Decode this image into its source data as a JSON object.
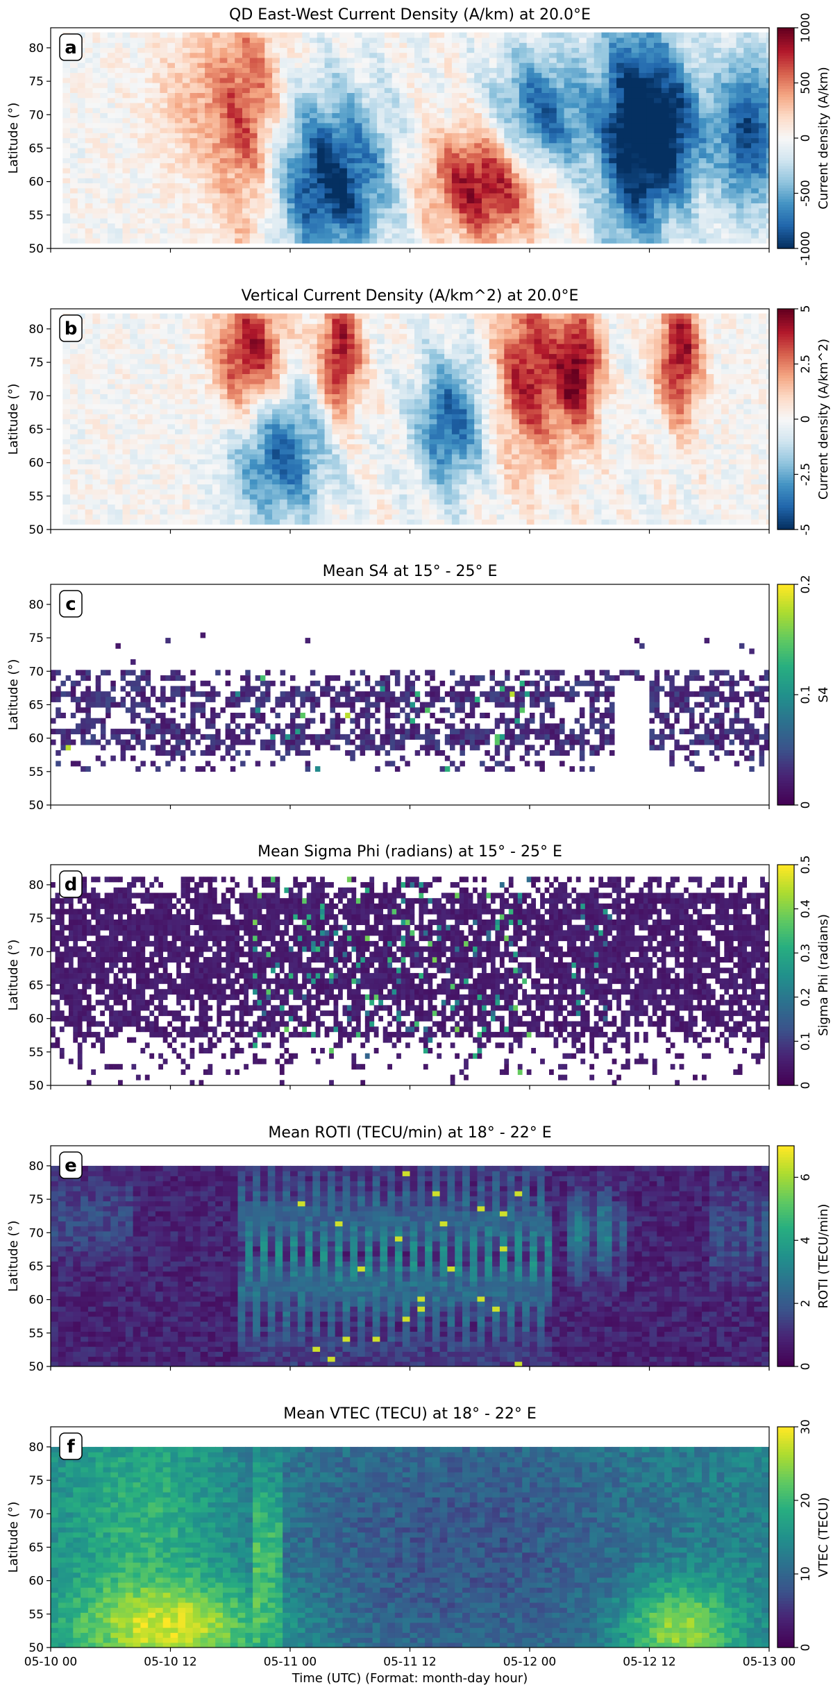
{
  "figure": {
    "xlabel": "Time (UTC) (Format: month-day hour)",
    "xticks": [
      "05-10 00",
      "05-10 12",
      "05-11 00",
      "05-11 12",
      "05-12 00",
      "05-12 12",
      "05-13 00"
    ],
    "colors": {
      "rdbu_neg": "#053061",
      "rdbu_mid": "#f7f7f7",
      "rdbu_pos": "#67001f",
      "viridis_low": "#440154",
      "viridis_high": "#fde725"
    }
  },
  "chart_data": [
    {
      "type": "heatmap",
      "label": "a",
      "title": "QD East-West Current Density (A/km) at 20.0°E",
      "ylabel": "Latitude (°)",
      "ylim": [
        50,
        83
      ],
      "yticks": [
        50,
        55,
        60,
        65,
        70,
        75,
        80
      ],
      "x_range": [
        "05-10 00",
        "05-13 00"
      ],
      "colormap": "RdBu_r",
      "colorbar_label": "Current density (A/km)",
      "clim": [
        -1000,
        1000
      ],
      "colorbar_ticks": [
        "-1000",
        "-500",
        "0",
        "500",
        "1000"
      ],
      "features": [
        {
          "t_hours": [
            40,
            48
          ],
          "lat": [
            55,
            65
          ],
          "value": 1000
        },
        {
          "t_hours": [
            24,
            32
          ],
          "lat": [
            52,
            68
          ],
          "value": -1000
        },
        {
          "t_hours": [
            46,
            52
          ],
          "lat": [
            62,
            75
          ],
          "value": -900
        },
        {
          "t_hours": [
            56,
            60
          ],
          "lat": [
            55,
            80
          ],
          "value": -900
        },
        {
          "t_hours": [
            60,
            64
          ],
          "lat": [
            60,
            75
          ],
          "value": -900
        },
        {
          "t_hours": [
            68,
            72
          ],
          "lat": [
            60,
            75
          ],
          "value": -900
        },
        {
          "t_hours": [
            12,
            18
          ],
          "lat": [
            65,
            80
          ],
          "value": 300
        },
        {
          "t_hours": [
            18,
            22
          ],
          "lat": [
            55,
            80
          ],
          "value": 600
        }
      ]
    },
    {
      "type": "heatmap",
      "label": "b",
      "title": "Vertical Current Density (A/km^2) at 20.0°E",
      "ylabel": "Latitude (°)",
      "ylim": [
        50,
        83
      ],
      "yticks": [
        50,
        55,
        60,
        65,
        70,
        75,
        80
      ],
      "x_range": [
        "05-10 00",
        "05-13 00"
      ],
      "colormap": "RdBu_r",
      "colorbar_label": "Current density (A/km^2)",
      "clim": [
        -5,
        5
      ],
      "colorbar_ticks": [
        "-5",
        "-2.5",
        "0",
        "2.5",
        "5"
      ],
      "features": [
        {
          "t_hours": [
            18,
            22
          ],
          "lat": [
            70,
            82
          ],
          "value": 4.5
        },
        {
          "t_hours": [
            28,
            30
          ],
          "lat": [
            70,
            82
          ],
          "value": 4.5
        },
        {
          "t_hours": [
            46,
            50
          ],
          "lat": [
            65,
            82
          ],
          "value": 4
        },
        {
          "t_hours": [
            52,
            54
          ],
          "lat": [
            68,
            80
          ],
          "value": 4.5
        },
        {
          "t_hours": [
            62,
            64
          ],
          "lat": [
            70,
            82
          ],
          "value": 4.5
        },
        {
          "t_hours": [
            20,
            26
          ],
          "lat": [
            55,
            68
          ],
          "value": -4
        },
        {
          "t_hours": [
            38,
            42
          ],
          "lat": [
            60,
            72
          ],
          "value": -4
        }
      ]
    },
    {
      "type": "heatmap",
      "label": "c",
      "title": "Mean S4 at 15° - 25° E",
      "ylabel": "Latitude (°)",
      "ylim": [
        50,
        83
      ],
      "yticks": [
        50,
        55,
        60,
        65,
        70,
        75,
        80
      ],
      "x_range": [
        "05-10 00",
        "05-13 00"
      ],
      "colormap": "viridis",
      "colorbar_label": "S4",
      "clim": [
        0,
        0.2
      ],
      "colorbar_ticks": [
        "0",
        "0.1",
        "0.2"
      ],
      "typical_value": 0.03,
      "lat_coverage": [
        55,
        75
      ],
      "data_gap_hours": [
        56,
        60
      ]
    },
    {
      "type": "heatmap",
      "label": "d",
      "title": "Mean Sigma Phi (radians) at 15° - 25° E",
      "ylabel": "Latitude (°)",
      "ylim": [
        50,
        83
      ],
      "yticks": [
        50,
        55,
        60,
        65,
        70,
        75,
        80
      ],
      "x_range": [
        "05-10 00",
        "05-13 00"
      ],
      "colormap": "viridis",
      "colorbar_label": "Sigma Phi (radians)",
      "clim": [
        0,
        0.5
      ],
      "colorbar_ticks": [
        "0",
        "0.1",
        "0.2",
        "0.3",
        "0.4",
        "0.5"
      ],
      "typical_value": 0.05,
      "peak_value": 0.4,
      "peak_hours": [
        20,
        48
      ]
    },
    {
      "type": "heatmap",
      "label": "e",
      "title": "Mean ROTI (TECU/min) at 18° - 22° E",
      "ylabel": "Latitude (°)",
      "ylim": [
        50,
        83
      ],
      "yticks": [
        50,
        55,
        60,
        65,
        70,
        75,
        80
      ],
      "x_range": [
        "05-10 00",
        "05-13 00"
      ],
      "colormap": "viridis",
      "colorbar_label": "ROTI (TECU/min)",
      "clim": [
        0,
        7
      ],
      "colorbar_ticks": [
        "0",
        "2",
        "4",
        "6"
      ],
      "data_lat_max": 80,
      "peak_value": 6.5,
      "peak_hours": [
        20,
        48
      ]
    },
    {
      "type": "heatmap",
      "label": "f",
      "title": "Mean VTEC (TECU) at 18° - 22° E",
      "ylabel": "Latitude (°)",
      "ylim": [
        50,
        83
      ],
      "yticks": [
        50,
        55,
        60,
        65,
        70,
        75,
        80
      ],
      "x_range": [
        "05-10 00",
        "05-13 00"
      ],
      "colormap": "viridis",
      "colorbar_label": "VTEC (TECU)",
      "clim": [
        0,
        30
      ],
      "colorbar_ticks": [
        "0",
        "10",
        "20",
        "30"
      ],
      "data_lat_max": 80,
      "features": [
        {
          "t_hours": [
            6,
            18
          ],
          "lat": [
            50,
            56
          ],
          "value": 28
        },
        {
          "t_hours": [
            60,
            66
          ],
          "lat": [
            50,
            56
          ],
          "value": 27
        },
        {
          "t_hours": [
            26,
            56
          ],
          "lat": [
            50,
            80
          ],
          "value": 8
        }
      ]
    }
  ]
}
